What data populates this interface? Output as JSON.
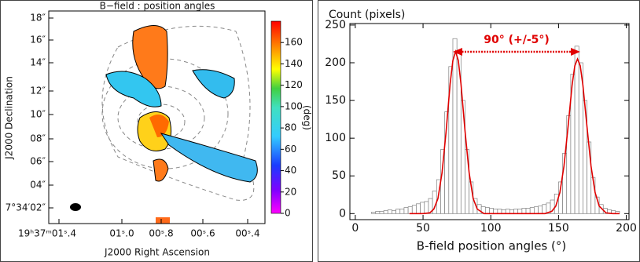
{
  "chart_data": [
    {
      "type": "map",
      "title": "B−field : position angles",
      "xlabel": "J2000 Right Ascension",
      "ylabel": "J2000 Declination",
      "xticklabels": [
        "19ʰ37ᵐ01ˢ.4",
        "01ˢ.0",
        "00ˢ.8",
        "00ˢ.6",
        "00ˢ.4"
      ],
      "yticklabels": [
        "18″",
        "16″",
        "14″",
        "12″",
        "10″",
        "08″",
        "06″",
        "04″",
        "7°34′02″"
      ],
      "colorbar": {
        "label": "(deg)",
        "lim": [
          0,
          180
        ],
        "ticks": [
          0,
          20,
          40,
          60,
          80,
          100,
          120,
          140,
          160
        ]
      }
    },
    {
      "type": "histogram",
      "ylabel": "Count (pixels)",
      "xlabel": "B-field position angles (°)",
      "annotation": "90° (+/-5°)",
      "color": "#808080",
      "bins": [
        12,
        15,
        18,
        21,
        24,
        27,
        30,
        33,
        36,
        39,
        42,
        45,
        48,
        51,
        54,
        57,
        60,
        63,
        66,
        69,
        72,
        75,
        78,
        81,
        84,
        87,
        90,
        93,
        96,
        99,
        102,
        105,
        108,
        111,
        114,
        117,
        120,
        123,
        126,
        129,
        132,
        135,
        138,
        141,
        144,
        147,
        150,
        153,
        156,
        159,
        162,
        165,
        168,
        171,
        174,
        177,
        180,
        183,
        186,
        189,
        192,
        195
      ],
      "counts": [
        2,
        3,
        3,
        4,
        5,
        4,
        6,
        6,
        8,
        9,
        11,
        13,
        15,
        16,
        20,
        30,
        45,
        85,
        135,
        195,
        232,
        215,
        150,
        85,
        42,
        20,
        12,
        9,
        8,
        7,
        6,
        6,
        5,
        6,
        5,
        6,
        6,
        7,
        7,
        8,
        9,
        10,
        12,
        14,
        18,
        26,
        42,
        80,
        130,
        185,
        222,
        200,
        150,
        95,
        48,
        22,
        12,
        7,
        5,
        4,
        3
      ],
      "fit": {
        "color": "#e00000",
        "x": [
          40,
          50,
          55,
          58,
          61,
          64,
          67,
          70,
          72,
          74,
          76,
          78,
          81,
          84,
          87,
          90,
          95,
          100,
          110,
          120,
          130,
          140,
          145,
          148,
          151,
          154,
          157,
          160,
          162,
          164,
          166,
          168,
          171,
          174,
          177,
          180,
          185,
          190,
          195
        ],
        "values": [
          0,
          0,
          1,
          6,
          20,
          54,
          109,
          172,
          203,
          215,
          203,
          172,
          109,
          54,
          20,
          6,
          0,
          0,
          0,
          0,
          0,
          0,
          3,
          10,
          28,
          63,
          115,
          170,
          196,
          205,
          196,
          170,
          115,
          63,
          28,
          10,
          1,
          0,
          0
        ]
      },
      "xlim": [
        -4,
        202
      ],
      "ylim": [
        -8,
        252
      ],
      "xticks": [
        0,
        50,
        100,
        150,
        200
      ],
      "yticks": [
        0,
        50,
        100,
        150,
        200,
        250
      ]
    }
  ]
}
